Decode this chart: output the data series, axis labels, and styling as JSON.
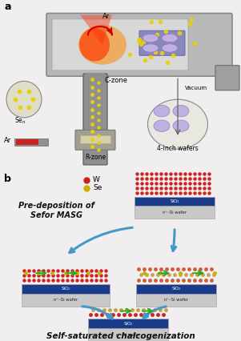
{
  "bg_color": "#f0eeee",
  "label_a": "a",
  "label_b": "b",
  "label_ar1": "Ar",
  "label_ar2": "Ar",
  "label_c_zone": "C-zone",
  "label_r_zone": "R-zone",
  "label_vacuum": "Vacuum",
  "label_4inch": "4-inch wafers",
  "label_w": "W",
  "label_se": "Se",
  "label_sio2": "SiO₂",
  "label_si": "n⁺–Si wafer",
  "text_predeposition": "Pre-deposition of\nSefor MASG",
  "text_self_saturated": "Self-saturated chalcogenization",
  "reactor_outer": "#a0a0a0",
  "reactor_inner": "#c8c8c8",
  "reactor_metal": "#888888",
  "tube_metal": "#909090",
  "glow_outer": "#ff6600",
  "glow_inner": "#ff2200",
  "se_dot_yellow": "#e8d010",
  "w_dot_red": "#cc2222",
  "wse2_gold": "#c8a040",
  "sio2_blue": "#1a3a8a",
  "si_gray": "#c0c0c0",
  "arrow_blue": "#4499cc",
  "arrow_green": "#22aa22"
}
